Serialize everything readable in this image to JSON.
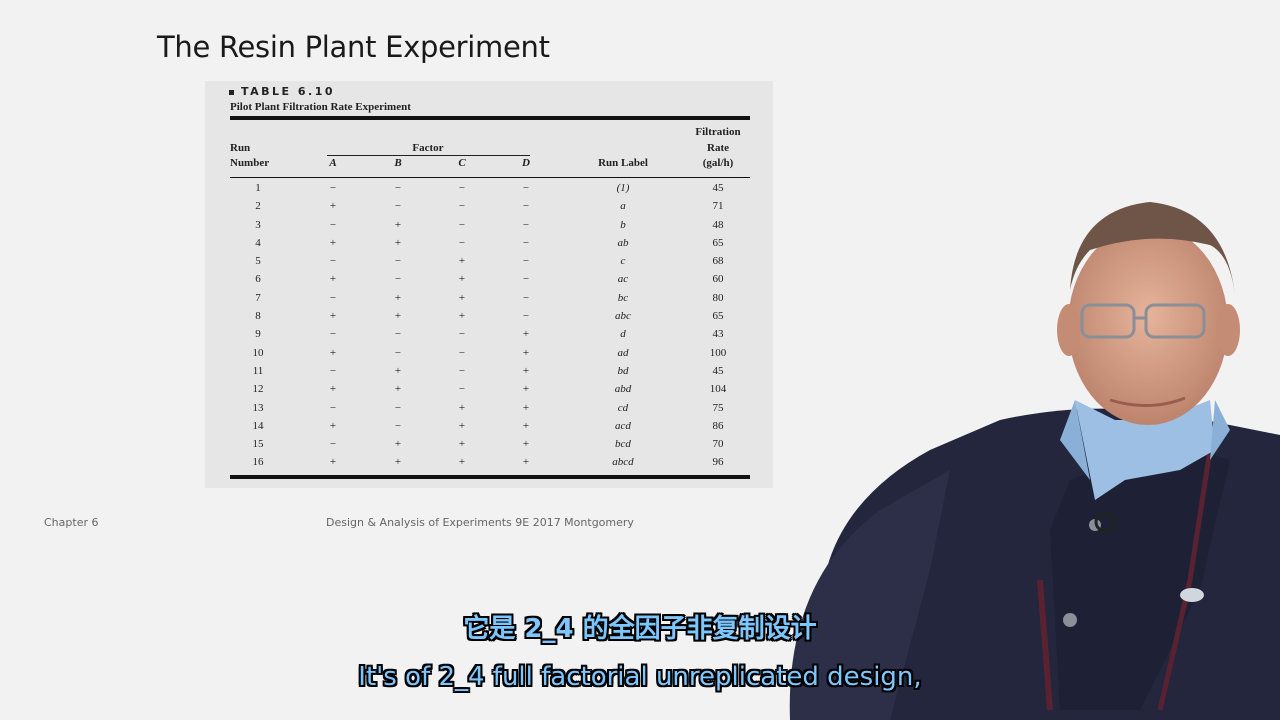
{
  "slide": {
    "title": "The Resin Plant Experiment",
    "footer_left": "Chapter 6",
    "footer_center": "Design & Analysis of Experiments 9E 2017 Montgomery"
  },
  "table": {
    "badge": "TABLE 6.10",
    "caption": "Pilot Plant Filtration Rate Experiment",
    "header": {
      "run_number_1": "Run",
      "run_number_2": "Number",
      "factor": "Factor",
      "a": "A",
      "b": "B",
      "c": "C",
      "d": "D",
      "run_label": "Run Label",
      "rate_1": "Filtration",
      "rate_2": "Rate",
      "rate_3": "(gal/h)"
    },
    "rows": [
      {
        "run": "1",
        "a": "−",
        "b": "−",
        "c": "−",
        "d": "−",
        "label": "(1)",
        "rate": "45"
      },
      {
        "run": "2",
        "a": "+",
        "b": "−",
        "c": "−",
        "d": "−",
        "label": "a",
        "rate": "71"
      },
      {
        "run": "3",
        "a": "−",
        "b": "+",
        "c": "−",
        "d": "−",
        "label": "b",
        "rate": "48"
      },
      {
        "run": "4",
        "a": "+",
        "b": "+",
        "c": "−",
        "d": "−",
        "label": "ab",
        "rate": "65"
      },
      {
        "run": "5",
        "a": "−",
        "b": "−",
        "c": "+",
        "d": "−",
        "label": "c",
        "rate": "68"
      },
      {
        "run": "6",
        "a": "+",
        "b": "−",
        "c": "+",
        "d": "−",
        "label": "ac",
        "rate": "60"
      },
      {
        "run": "7",
        "a": "−",
        "b": "+",
        "c": "+",
        "d": "−",
        "label": "bc",
        "rate": "80"
      },
      {
        "run": "8",
        "a": "+",
        "b": "+",
        "c": "+",
        "d": "−",
        "label": "abc",
        "rate": "65"
      },
      {
        "run": "9",
        "a": "−",
        "b": "−",
        "c": "−",
        "d": "+",
        "label": "d",
        "rate": "43"
      },
      {
        "run": "10",
        "a": "+",
        "b": "−",
        "c": "−",
        "d": "+",
        "label": "ad",
        "rate": "100"
      },
      {
        "run": "11",
        "a": "−",
        "b": "+",
        "c": "−",
        "d": "+",
        "label": "bd",
        "rate": "45"
      },
      {
        "run": "12",
        "a": "+",
        "b": "+",
        "c": "−",
        "d": "+",
        "label": "abd",
        "rate": "104"
      },
      {
        "run": "13",
        "a": "−",
        "b": "−",
        "c": "+",
        "d": "+",
        "label": "cd",
        "rate": "75"
      },
      {
        "run": "14",
        "a": "+",
        "b": "−",
        "c": "+",
        "d": "+",
        "label": "acd",
        "rate": "86"
      },
      {
        "run": "15",
        "a": "−",
        "b": "+",
        "c": "+",
        "d": "+",
        "label": "bcd",
        "rate": "70"
      },
      {
        "run": "16",
        "a": "+",
        "b": "+",
        "c": "+",
        "d": "+",
        "label": "abcd",
        "rate": "96"
      }
    ]
  },
  "subtitles": {
    "zh": "它是 2_4 的全因子非复制设计",
    "en": "It's of 2_4 full factorial unreplicated design,"
  },
  "colors": {
    "subtitle": "#7cc7ff",
    "background": "#f2f2f2",
    "table_bg": "#e6e6e6"
  }
}
